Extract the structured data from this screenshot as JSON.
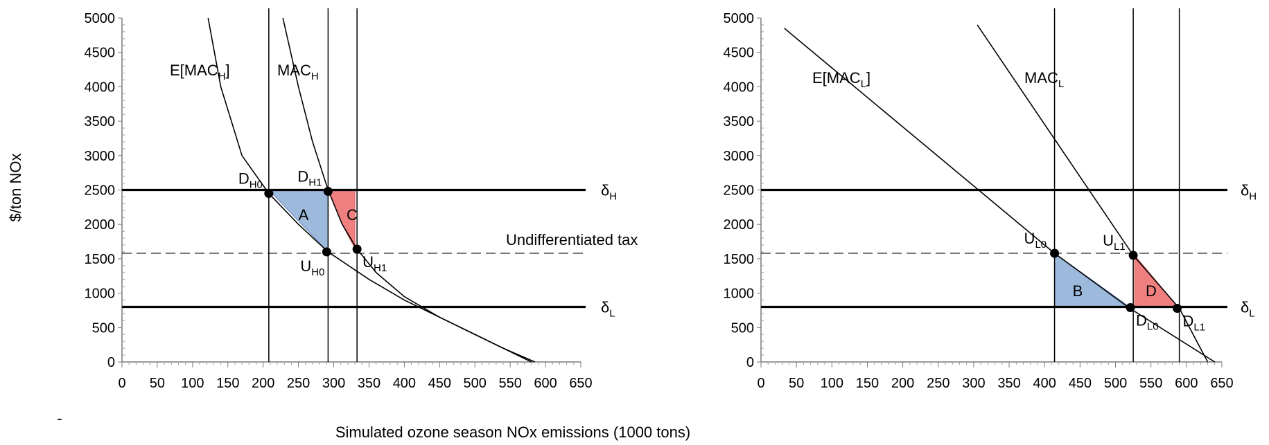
{
  "figure": {
    "ylabel": "$/ton NOx",
    "xlabel": "Simulated ozone season NOx emissions (1000 tons)",
    "dash_text": "-",
    "undifferentiated_label": "Undifferentiated tax",
    "undifferentiated_tax": 1600,
    "delta_h": {
      "main": "δ",
      "sub": "H",
      "value": 2500
    },
    "delta_l": {
      "main": "δ",
      "sub": "L",
      "value": 800
    }
  },
  "colors": {
    "blue_fill": "#9db9dc",
    "red_fill": "#f08080",
    "line": "#000000"
  },
  "chart_data": [
    {
      "type": "line",
      "title": "",
      "xlabel": "Simulated ozone season NOx emissions (1000 tons)",
      "ylabel": "$/ton NOx",
      "xlim": [
        0,
        650
      ],
      "ylim": [
        0,
        5000
      ],
      "xticks": [
        0,
        50,
        100,
        150,
        200,
        250,
        300,
        350,
        400,
        450,
        500,
        550,
        600,
        650
      ],
      "yticks": [
        0,
        500,
        1000,
        1500,
        2000,
        2500,
        3000,
        3500,
        4000,
        4500,
        5000
      ],
      "hlines": [
        {
          "value": 2500,
          "style": "thick",
          "label_main": "δ",
          "label_sub": "H"
        },
        {
          "value": 800,
          "style": "thick",
          "label_main": "δ",
          "label_sub": "L"
        },
        {
          "value": 1600,
          "style": "dashed"
        }
      ],
      "vlines": [
        208,
        292,
        333
      ],
      "series": [
        {
          "name": "E[MAC_H]",
          "label_main": "E[MAC",
          "label_sub": "H",
          "label_tail": "]",
          "x": [
            122,
            140,
            170,
            208,
            250,
            292,
            350,
            400,
            450,
            500,
            540,
            580
          ],
          "y": [
            5000,
            4000,
            3000,
            2450,
            2000,
            1600,
            1200,
            900,
            650,
            400,
            200,
            0
          ]
        },
        {
          "name": "MAC_H",
          "label_main": "MAC",
          "label_sub": "H",
          "x": [
            228,
            250,
            270,
            292,
            312,
            333,
            360,
            400,
            450,
            500,
            540,
            585
          ],
          "y": [
            5000,
            4000,
            3200,
            2500,
            2000,
            1640,
            1300,
            950,
            650,
            400,
            200,
            0
          ]
        }
      ],
      "regions": [
        {
          "label": "A",
          "color": "blue",
          "points": [
            [
              208,
              2500
            ],
            [
              292,
              2500
            ],
            [
              292,
              1600
            ]
          ]
        },
        {
          "label": "C",
          "color": "red",
          "points": [
            [
              292,
              2500
            ],
            [
              330,
              2500
            ],
            [
              330,
              1650
            ],
            [
              312,
              2000
            ]
          ]
        }
      ],
      "points": [
        {
          "main": "D",
          "sub": "H0",
          "x": 208,
          "y": 2450,
          "pos": "above-left"
        },
        {
          "main": "D",
          "sub": "H1",
          "x": 292,
          "y": 2480,
          "pos": "above-left"
        },
        {
          "main": "U",
          "sub": "H0",
          "x": 290,
          "y": 1600,
          "pos": "below-left"
        },
        {
          "main": "U",
          "sub": "H1",
          "x": 333,
          "y": 1640,
          "pos": "below-right"
        }
      ]
    },
    {
      "type": "line",
      "title": "",
      "xlabel": "Simulated ozone season NOx emissions (1000 tons)",
      "ylabel": "$/ton NOx",
      "xlim": [
        0,
        650
      ],
      "ylim": [
        0,
        5000
      ],
      "xticks": [
        0,
        50,
        100,
        150,
        200,
        250,
        300,
        350,
        400,
        450,
        500,
        550,
        600,
        650
      ],
      "yticks": [
        0,
        500,
        1000,
        1500,
        2000,
        2500,
        3000,
        3500,
        4000,
        4500,
        5000
      ],
      "hlines": [
        {
          "value": 2500,
          "style": "thick",
          "label_main": "δ",
          "label_sub": "H"
        },
        {
          "value": 800,
          "style": "thick",
          "label_main": "δ",
          "label_sub": "L"
        },
        {
          "value": 1600,
          "style": "dashed"
        }
      ],
      "vlines": [
        414,
        525,
        590
      ],
      "series": [
        {
          "name": "E[MAC_L]",
          "label_main": "E[MAC",
          "label_sub": "L",
          "label_tail": "]",
          "x": [
            33,
            414,
            520,
            640
          ],
          "y": [
            4850,
            1580,
            780,
            0
          ]
        },
        {
          "name": "MAC_L",
          "label_main": "MAC",
          "label_sub": "L",
          "x": [
            305,
            525,
            590,
            630
          ],
          "y": [
            4900,
            1550,
            780,
            0
          ]
        }
      ],
      "regions": [
        {
          "label": "B",
          "color": "blue",
          "points": [
            [
              414,
              1580
            ],
            [
              414,
              800
            ],
            [
              520,
              800
            ]
          ]
        },
        {
          "label": "D",
          "color": "red",
          "points": [
            [
              527,
              1550
            ],
            [
              527,
              800
            ],
            [
              588,
              800
            ]
          ]
        }
      ],
      "points": [
        {
          "main": "U",
          "sub": "L0",
          "x": 414,
          "y": 1580,
          "pos": "above-left"
        },
        {
          "main": "U",
          "sub": "L1",
          "x": 525,
          "y": 1550,
          "pos": "above-left"
        },
        {
          "main": "D",
          "sub": "L0",
          "x": 521,
          "y": 790,
          "pos": "below-right"
        },
        {
          "main": "D",
          "sub": "L1",
          "x": 587,
          "y": 780,
          "pos": "below-right"
        }
      ]
    }
  ]
}
